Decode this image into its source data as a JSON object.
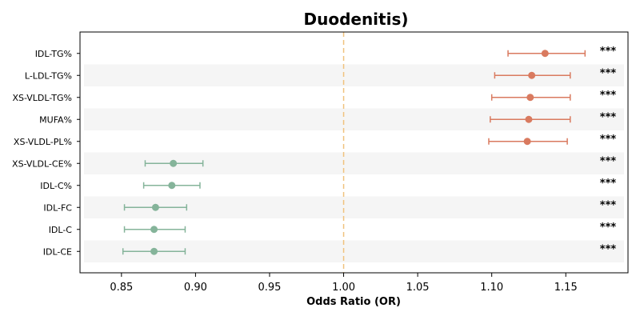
{
  "chart_data": {
    "type": "forest",
    "title": "Duodenitis)",
    "xlabel": "Odds Ratio (OR)",
    "xlim": [
      0.822,
      1.192
    ],
    "xticks": [
      "0.85",
      "0.90",
      "0.95",
      "1.00",
      "1.05",
      "1.10",
      "1.15"
    ],
    "reference_line": 1.0,
    "colors": {
      "risk": "#d97a5f",
      "protective": "#85b49a",
      "reference": "#f0c27d",
      "band": "#f5f5f5"
    },
    "rows": [
      {
        "label": "IDL-TG%",
        "or": 1.136,
        "lo": 1.111,
        "hi": 1.163,
        "sig": "***",
        "group": "risk"
      },
      {
        "label": "L-LDL-TG%",
        "or": 1.127,
        "lo": 1.102,
        "hi": 1.153,
        "sig": "***",
        "group": "risk"
      },
      {
        "label": "XS-VLDL-TG%",
        "or": 1.126,
        "lo": 1.1,
        "hi": 1.153,
        "sig": "***",
        "group": "risk"
      },
      {
        "label": "MUFA%",
        "or": 1.125,
        "lo": 1.099,
        "hi": 1.153,
        "sig": "***",
        "group": "risk"
      },
      {
        "label": "XS-VLDL-PL%",
        "or": 1.124,
        "lo": 1.098,
        "hi": 1.151,
        "sig": "***",
        "group": "risk"
      },
      {
        "label": "XS-VLDL-CE%",
        "or": 0.885,
        "lo": 0.866,
        "hi": 0.905,
        "sig": "***",
        "group": "protective"
      },
      {
        "label": "IDL-C%",
        "or": 0.884,
        "lo": 0.865,
        "hi": 0.903,
        "sig": "***",
        "group": "protective"
      },
      {
        "label": "IDL-FC",
        "or": 0.873,
        "lo": 0.852,
        "hi": 0.894,
        "sig": "***",
        "group": "protective"
      },
      {
        "label": "IDL-C",
        "or": 0.872,
        "lo": 0.852,
        "hi": 0.893,
        "sig": "***",
        "group": "protective"
      },
      {
        "label": "IDL-CE",
        "or": 0.872,
        "lo": 0.851,
        "hi": 0.893,
        "sig": "***",
        "group": "protective"
      }
    ]
  }
}
